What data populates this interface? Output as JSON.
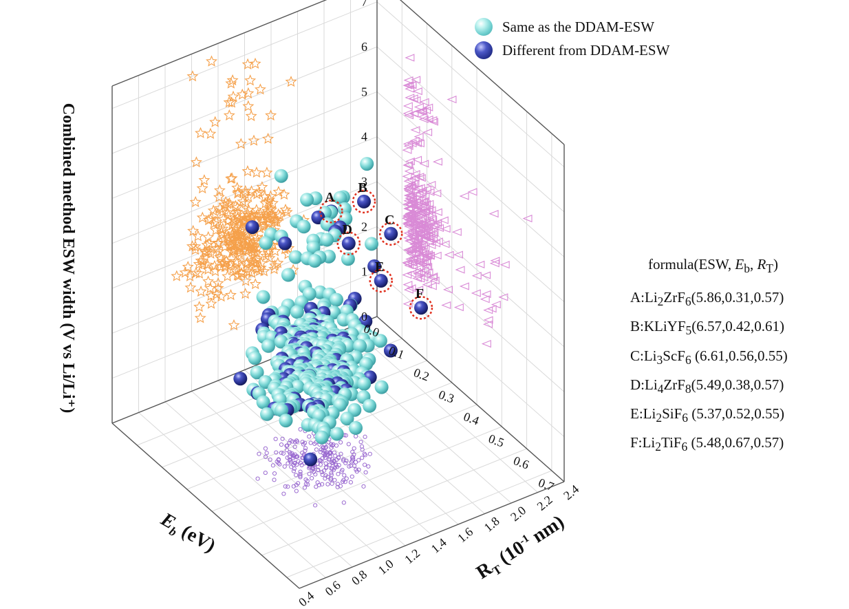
{
  "chart_data": {
    "type": "scatter",
    "subtype": "3d-scatter-with-wall-projections",
    "axes": {
      "z": {
        "label": "Combined method ESW width (V vs Li/Li⁺)",
        "range": [
          0,
          7.5
        ],
        "ticks": [
          "0",
          "1",
          "2",
          "3",
          "4",
          "5",
          "6",
          "7"
        ]
      },
      "eb": {
        "label_main": "E",
        "label_sub": "b",
        "label_unit": " (eV)",
        "range": [
          0.0,
          0.75
        ],
        "ticks": [
          "0.0",
          "0.1",
          "0.2",
          "0.3",
          "0.4",
          "0.5",
          "0.6",
          "0.7"
        ]
      },
      "rt": {
        "label_main": "R",
        "label_sub": "T",
        "label_unit_pre": " (10",
        "label_unit_sup": "-1",
        "label_unit_post": " nm)",
        "range": [
          0.4,
          2.4
        ],
        "ticks": [
          "0.4",
          "0.6",
          "0.8",
          "1.0",
          "1.2",
          "1.4",
          "1.6",
          "1.8",
          "2.0",
          "2.2",
          "2.4"
        ]
      }
    },
    "grid": true,
    "legend_position": "top-right",
    "series": [
      {
        "name": "Same as the DDAM-ESW",
        "color": "#7fd8d6",
        "marker": "sphere"
      },
      {
        "name": "Different from DDAM-ESW",
        "color": "#2b3595",
        "marker": "sphere"
      }
    ],
    "wall_projections": [
      {
        "wall": "left",
        "marker": "open-triangle-left",
        "color": "#d98ad6",
        "axes": [
          "eb",
          "esw"
        ]
      },
      {
        "wall": "back",
        "marker": "open-star",
        "color": "#f5a04a",
        "axes": [
          "rt",
          "esw"
        ]
      },
      {
        "wall": "floor",
        "marker": "open-circle",
        "color": "#9a6ad0",
        "axes": [
          "eb",
          "rt"
        ]
      }
    ],
    "labeled_points": [
      {
        "label": "A",
        "esw": 5.86,
        "eb": 0.31,
        "rt": 0.57
      },
      {
        "label": "B",
        "esw": 6.57,
        "eb": 0.42,
        "rt": 0.61
      },
      {
        "label": "C",
        "esw": 6.61,
        "eb": 0.56,
        "rt": 0.55
      },
      {
        "label": "D",
        "esw": 5.49,
        "eb": 0.38,
        "rt": 0.57
      },
      {
        "label": "E",
        "esw": 5.37,
        "eb": 0.52,
        "rt": 0.55
      },
      {
        "label": "F",
        "esw": 5.48,
        "eb": 0.67,
        "rt": 0.57
      }
    ]
  },
  "formula_panel": {
    "title_parts": [
      "formula(ESW, ",
      "E",
      "b",
      ", ",
      "R",
      "T",
      ")"
    ],
    "rows": [
      {
        "prefix": "A:Li",
        "parts": [
          [
            "2",
            "sub"
          ],
          [
            "ZrF",
            "n"
          ],
          [
            "6",
            "sub"
          ],
          [
            "(5.86,0.31,0.57)",
            "n"
          ]
        ]
      },
      {
        "prefix": "B:KLiYF",
        "parts": [
          [
            "5",
            "sub"
          ],
          [
            "(6.57,0.42,0.61)",
            "n"
          ]
        ]
      },
      {
        "prefix": "C:Li",
        "parts": [
          [
            "3",
            "sub"
          ],
          [
            "ScF",
            "n"
          ],
          [
            "6",
            "sub"
          ],
          [
            " (6.61,0.56,0.55)",
            "n"
          ]
        ]
      },
      {
        "prefix": "D:Li",
        "parts": [
          [
            "4",
            "sub"
          ],
          [
            "ZrF",
            "n"
          ],
          [
            "8",
            "sub"
          ],
          [
            "(5.49,0.38,0.57)",
            "n"
          ]
        ]
      },
      {
        "prefix": "E:Li",
        "parts": [
          [
            "2",
            "sub"
          ],
          [
            "SiF",
            "n"
          ],
          [
            "6",
            "sub"
          ],
          [
            " (5.37,0.52,0.55)",
            "n"
          ]
        ]
      },
      {
        "prefix": "F:Li",
        "parts": [
          [
            "2",
            "sub"
          ],
          [
            "TiF",
            "n"
          ],
          [
            "6",
            "sub"
          ],
          [
            " (5.48,0.67,0.57)",
            "n"
          ]
        ]
      }
    ]
  }
}
